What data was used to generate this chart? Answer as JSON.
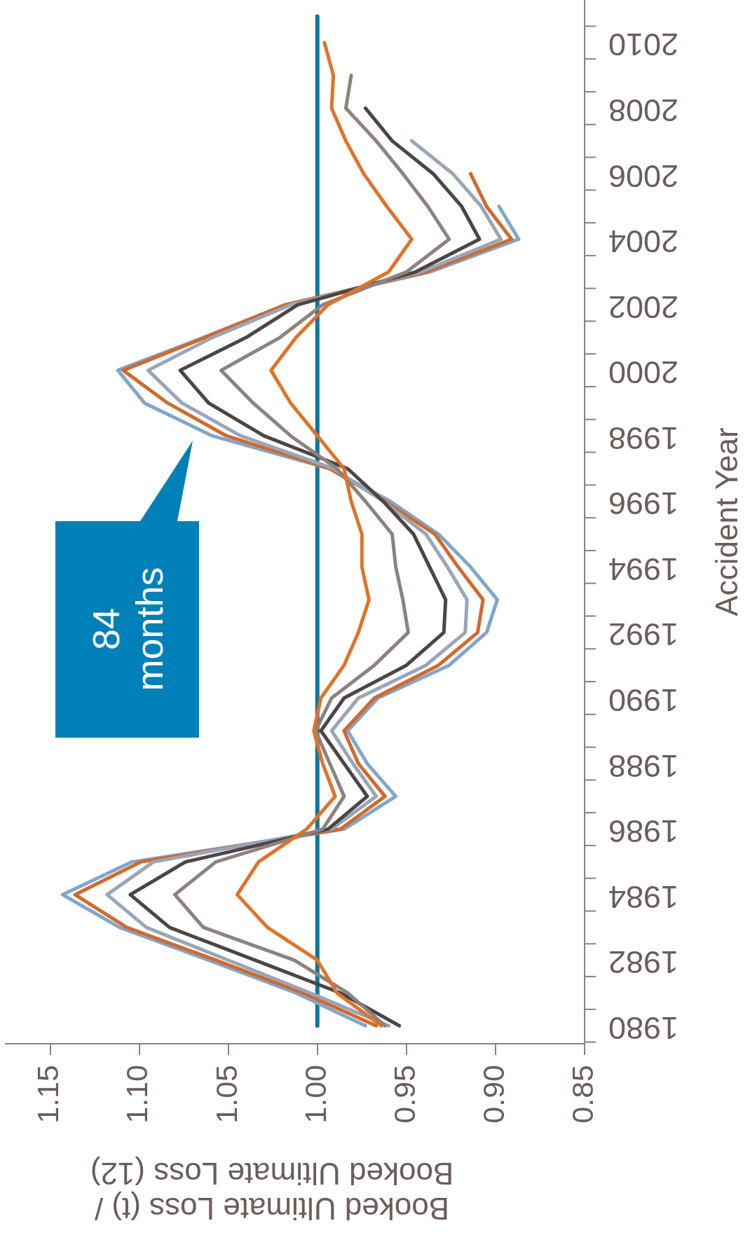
{
  "chart_data": {
    "type": "line",
    "orientation": "horizontal",
    "ylabel": "Accident Year",
    "xlabel": "Booked Ultimate Loss (t) /\nBooked Ultimate Loss (12)",
    "categories": [
      "2010",
      null,
      "2008",
      null,
      "2006",
      null,
      "2004",
      null,
      "2002",
      null,
      "2000",
      null,
      "1998",
      null,
      "1996",
      null,
      "1994",
      null,
      "1992",
      null,
      "1990",
      null,
      "1988",
      null,
      "1986",
      null,
      "1984",
      null,
      "1982",
      null,
      "1980"
    ],
    "series": [
      {
        "color": "#e07328",
        "values": [
          0.996,
          0.991,
          0.992,
          0.984,
          0.974,
          0.961,
          0.947,
          0.96,
          0.994,
          1.012,
          1.026,
          1.015,
          1.0,
          0.985,
          0.981,
          0.975,
          0.975,
          0.971,
          0.977,
          0.985,
          0.998,
          1.002,
          0.997,
          0.99,
          1.006,
          1.033,
          1.045,
          1.028,
          1.0,
          0.989,
          0.964
        ]
      },
      {
        "color": "#8e827e",
        "values": [
          null,
          0.981,
          0.984,
          0.967,
          0.952,
          0.938,
          0.926,
          0.95,
          0.997,
          1.021,
          1.054,
          1.036,
          1.015,
          0.989,
          0.973,
          0.958,
          0.956,
          0.952,
          0.949,
          0.968,
          0.992,
          1.001,
          0.993,
          0.985,
          0.997,
          1.057,
          1.08,
          1.064,
          1.013,
          0.983,
          0.962
        ]
      },
      {
        "color": "#4d4443",
        "values": [
          null,
          null,
          0.973,
          0.958,
          0.935,
          0.919,
          0.909,
          0.945,
          1.011,
          1.04,
          1.077,
          1.061,
          1.03,
          0.983,
          0.963,
          0.946,
          0.937,
          0.928,
          0.929,
          0.95,
          0.985,
          0.998,
          0.985,
          0.972,
          0.994,
          1.074,
          1.105,
          1.083,
          1.035,
          0.987,
          0.954
        ]
      },
      {
        "color": "#97a6b8",
        "values": [
          null,
          null,
          null,
          0.947,
          0.924,
          0.908,
          0.897,
          0.942,
          1.015,
          1.059,
          1.095,
          1.076,
          1.043,
          0.991,
          0.963,
          0.939,
          0.927,
          0.916,
          0.917,
          0.939,
          0.977,
          0.992,
          0.98,
          0.967,
          0.992,
          1.092,
          1.118,
          1.096,
          1.05,
          1.004,
          0.96
        ]
      },
      {
        "color": "#d2692a",
        "values": [
          null,
          null,
          null,
          null,
          0.914,
          0.905,
          0.891,
          0.939,
          1.018,
          1.063,
          1.109,
          1.084,
          1.051,
          0.993,
          0.962,
          0.934,
          0.921,
          0.907,
          0.91,
          0.932,
          0.968,
          0.985,
          0.977,
          0.962,
          0.987,
          1.099,
          1.136,
          1.107,
          1.057,
          1.008,
          0.967
        ]
      },
      {
        "color": "#80a6cc",
        "values": [
          null,
          null,
          null,
          null,
          null,
          0.898,
          0.887,
          0.937,
          1.018,
          1.064,
          1.112,
          1.097,
          1.059,
          0.993,
          0.959,
          0.932,
          0.914,
          0.899,
          0.905,
          0.926,
          0.966,
          0.983,
          0.972,
          0.956,
          0.985,
          1.104,
          1.143,
          1.111,
          1.061,
          1.012,
          0.973
        ]
      }
    ],
    "xlim": [
      1.175,
      0.85
    ],
    "xticks": [
      1.15,
      {
        "value": 1.1,
        "label": "1.10"
      },
      1.05,
      {
        "value": 1,
        "label": "1.00"
      },
      0.95,
      {
        "value": 0.9,
        "label": "0.90"
      },
      0.85
    ],
    "ref_lines": [
      {
        "axis": "x",
        "value": 1,
        "color": "#0e76a0"
      }
    ],
    "annotations": [
      "84 months"
    ],
    "grid": false,
    "legend": false,
    "marker": "none",
    "line_style": "solid"
  }
}
